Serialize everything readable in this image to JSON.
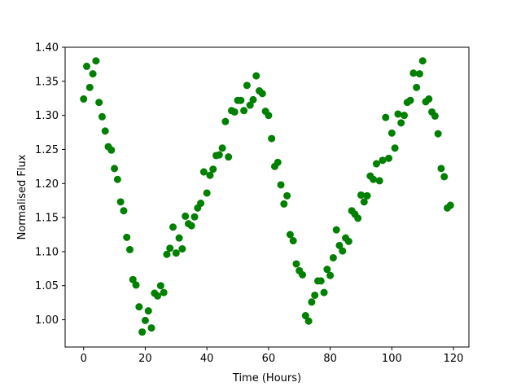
{
  "chart_data": {
    "type": "scatter",
    "xlabel": "Time (Hours)",
    "ylabel": "Normalised Flux",
    "xlim": [
      -6,
      125
    ],
    "ylim": [
      0.96,
      1.4
    ],
    "xticks": [
      0,
      20,
      40,
      60,
      80,
      100,
      120
    ],
    "yticks": [
      1.0,
      1.05,
      1.1,
      1.15,
      1.2,
      1.25,
      1.3,
      1.35,
      1.4
    ],
    "xtick_labels": [
      "0",
      "20",
      "40",
      "60",
      "80",
      "100",
      "120"
    ],
    "ytick_labels": [
      "1.00",
      "1.05",
      "1.10",
      "1.15",
      "1.20",
      "1.25",
      "1.30",
      "1.35",
      "1.40"
    ],
    "grid": false,
    "colors": {
      "points": "#008000",
      "axes": "#000000",
      "background": "#ffffff"
    },
    "series": [
      {
        "points": [
          [
            0,
            1.324
          ],
          [
            1,
            1.372
          ],
          [
            2,
            1.341
          ],
          [
            3,
            1.361
          ],
          [
            4,
            1.38
          ],
          [
            5,
            1.319
          ],
          [
            6,
            1.298
          ],
          [
            7,
            1.277
          ],
          [
            8,
            1.254
          ],
          [
            9,
            1.249
          ],
          [
            10,
            1.222
          ],
          [
            11,
            1.206
          ],
          [
            12,
            1.173
          ],
          [
            13,
            1.16
          ],
          [
            14,
            1.121
          ],
          [
            15,
            1.103
          ],
          [
            16,
            1.059
          ],
          [
            17,
            1.051
          ],
          [
            18,
            1.019
          ],
          [
            19,
            0.982
          ],
          [
            20,
            0.999
          ],
          [
            21,
            1.013
          ],
          [
            22,
            0.988
          ],
          [
            23,
            1.039
          ],
          [
            24,
            1.035
          ],
          [
            25,
            1.05
          ],
          [
            26,
            1.04
          ],
          [
            27,
            1.096
          ],
          [
            28,
            1.105
          ],
          [
            29,
            1.136
          ],
          [
            30,
            1.098
          ],
          [
            31,
            1.12
          ],
          [
            32,
            1.104
          ],
          [
            33,
            1.152
          ],
          [
            34,
            1.141
          ],
          [
            35,
            1.138
          ],
          [
            36,
            1.151
          ],
          [
            37,
            1.164
          ],
          [
            38,
            1.171
          ],
          [
            39,
            1.217
          ],
          [
            40,
            1.186
          ],
          [
            41,
            1.212
          ],
          [
            42,
            1.221
          ],
          [
            43,
            1.241
          ],
          [
            44,
            1.242
          ],
          [
            45,
            1.252
          ],
          [
            46,
            1.291
          ],
          [
            47,
            1.239
          ],
          [
            48,
            1.307
          ],
          [
            49,
            1.305
          ],
          [
            50,
            1.322
          ],
          [
            51,
            1.322
          ],
          [
            52,
            1.307
          ],
          [
            53,
            1.344
          ],
          [
            54,
            1.315
          ],
          [
            55,
            1.323
          ],
          [
            56,
            1.358
          ],
          [
            57,
            1.336
          ],
          [
            58,
            1.332
          ],
          [
            59,
            1.306
          ],
          [
            60,
            1.3
          ],
          [
            61,
            1.266
          ],
          [
            62,
            1.225
          ],
          [
            63,
            1.231
          ],
          [
            64,
            1.198
          ],
          [
            65,
            1.17
          ],
          [
            66,
            1.182
          ],
          [
            67,
            1.125
          ],
          [
            68,
            1.116
          ],
          [
            69,
            1.082
          ],
          [
            70,
            1.072
          ],
          [
            71,
            1.066
          ],
          [
            72,
            1.006
          ],
          [
            73,
            0.998
          ],
          [
            74,
            1.026
          ],
          [
            75,
            1.036
          ],
          [
            76,
            1.057
          ],
          [
            77,
            1.057
          ],
          [
            78,
            1.04
          ],
          [
            79,
            1.074
          ],
          [
            80,
            1.065
          ],
          [
            81,
            1.091
          ],
          [
            82,
            1.132
          ],
          [
            83,
            1.109
          ],
          [
            84,
            1.101
          ],
          [
            85,
            1.12
          ],
          [
            86,
            1.115
          ],
          [
            87,
            1.16
          ],
          [
            88,
            1.155
          ],
          [
            89,
            1.149
          ],
          [
            90,
            1.183
          ],
          [
            91,
            1.173
          ],
          [
            92,
            1.182
          ],
          [
            93,
            1.211
          ],
          [
            94,
            1.206
          ],
          [
            95,
            1.229
          ],
          [
            96,
            1.204
          ],
          [
            97,
            1.234
          ],
          [
            98,
            1.297
          ],
          [
            99,
            1.237
          ],
          [
            100,
            1.274
          ],
          [
            101,
            1.252
          ],
          [
            102,
            1.302
          ],
          [
            103,
            1.289
          ],
          [
            104,
            1.3
          ],
          [
            105,
            1.319
          ],
          [
            106,
            1.322
          ],
          [
            107,
            1.362
          ],
          [
            108,
            1.341
          ],
          [
            109,
            1.361
          ],
          [
            110,
            1.38
          ],
          [
            111,
            1.32
          ],
          [
            112,
            1.324
          ],
          [
            113,
            1.305
          ],
          [
            114,
            1.299
          ],
          [
            115,
            1.273
          ],
          [
            116,
            1.222
          ],
          [
            117,
            1.21
          ],
          [
            118,
            1.164
          ],
          [
            119,
            1.168
          ]
        ]
      }
    ]
  }
}
